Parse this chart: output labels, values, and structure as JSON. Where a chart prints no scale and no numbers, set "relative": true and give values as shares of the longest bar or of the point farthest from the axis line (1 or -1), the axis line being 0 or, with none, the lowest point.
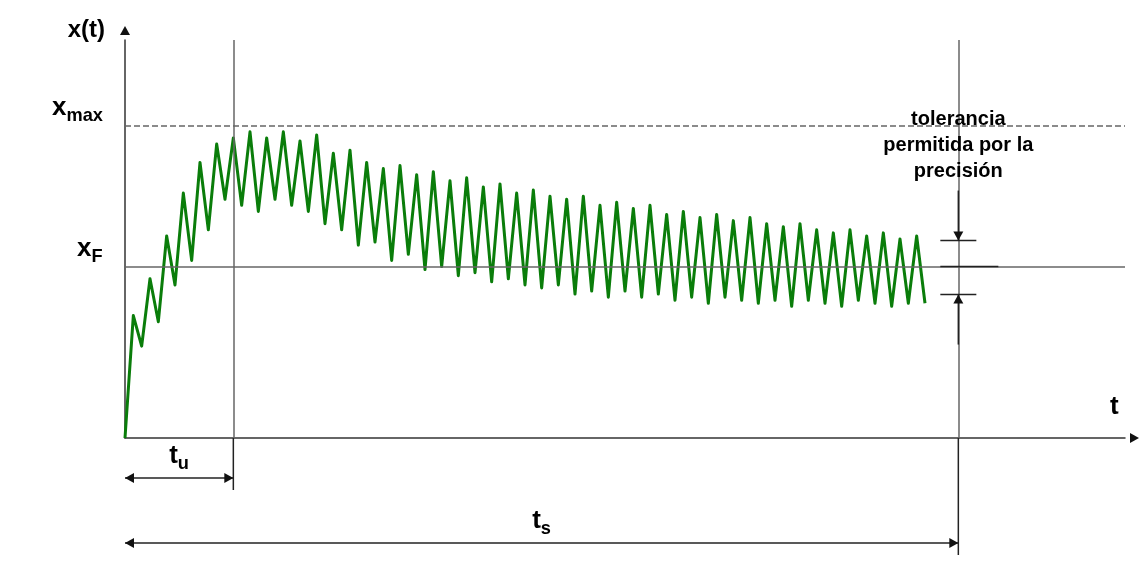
{
  "chart_data": {
    "type": "line",
    "relative": true,
    "xlabel": "t",
    "ylabel": "x(t)",
    "categories": [
      null,
      null,
      null,
      null,
      null,
      null,
      null,
      null,
      null,
      null,
      null,
      null,
      null,
      null,
      null,
      null,
      null,
      null,
      null,
      null,
      null,
      null,
      null,
      null,
      null,
      null,
      null,
      null,
      null,
      null,
      null,
      null,
      null,
      null,
      null,
      null,
      null,
      null,
      null,
      null,
      null,
      null,
      null,
      null,
      null,
      null,
      null,
      null,
      null,
      null,
      null,
      null,
      null,
      null,
      null,
      null,
      null,
      null,
      null,
      null,
      null,
      null,
      null,
      null,
      null,
      null,
      null,
      null,
      null,
      null,
      null,
      null,
      null,
      null,
      null,
      null,
      null,
      null,
      null,
      null,
      null,
      null,
      null,
      null,
      null,
      null,
      null,
      null,
      null,
      null,
      null,
      null,
      null,
      null,
      null,
      null,
      null,
      null,
      null,
      null,
      null,
      null,
      null,
      null,
      null,
      null,
      null,
      null,
      null,
      null,
      null,
      null,
      null,
      null,
      null,
      null,
      null,
      null,
      null,
      null,
      null
    ],
    "grid": false,
    "series": [
      {
        "color": "#0a7d0a",
        "values": [
          0,
          0.4,
          0.3,
          0.52,
          0.38,
          0.66,
          0.5,
          0.8,
          0.58,
          0.9,
          0.68,
          0.96,
          0.78,
          0.98,
          0.76,
          1.0,
          0.74,
          0.98,
          0.78,
          1.0,
          0.76,
          0.97,
          0.74,
          0.99,
          0.7,
          0.93,
          0.68,
          0.94,
          0.63,
          0.9,
          0.64,
          0.88,
          0.58,
          0.89,
          0.6,
          0.86,
          0.55,
          0.87,
          0.56,
          0.84,
          0.53,
          0.85,
          0.54,
          0.82,
          0.51,
          0.83,
          0.52,
          0.8,
          0.5,
          0.81,
          0.49,
          0.79,
          0.5,
          0.78,
          0.47,
          0.79,
          0.48,
          0.76,
          0.46,
          0.77,
          0.48,
          0.75,
          0.46,
          0.76,
          0.47,
          0.73,
          0.45,
          0.74,
          0.46,
          0.72,
          0.44,
          0.73,
          0.46,
          0.71,
          0.45,
          0.72,
          0.44,
          0.7,
          0.45,
          0.69,
          0.43,
          0.7,
          0.45,
          0.68,
          0.44,
          0.67,
          0.43,
          0.68,
          0.45,
          0.66,
          0.44,
          0.67,
          0.43,
          0.65,
          0.44,
          0.66,
          0.44,
          null,
          null,
          null,
          null,
          null,
          null,
          null,
          null,
          null,
          null,
          null,
          null,
          null,
          null,
          null,
          null,
          null,
          null,
          null,
          null,
          null,
          null,
          null,
          null
        ]
      }
    ],
    "ref_lines": [
      {
        "axis": "y",
        "value": 1.02,
        "label": "x$_{max}$",
        "line_style": "dashed"
      },
      {
        "axis": "y",
        "value": 0.56,
        "label": "x$_{F}$",
        "line_style": "solid"
      }
    ],
    "annotations": [
      "t$_{u}$",
      "t$_{s}$",
      "tolerancia permitida por la precisión"
    ]
  }
}
